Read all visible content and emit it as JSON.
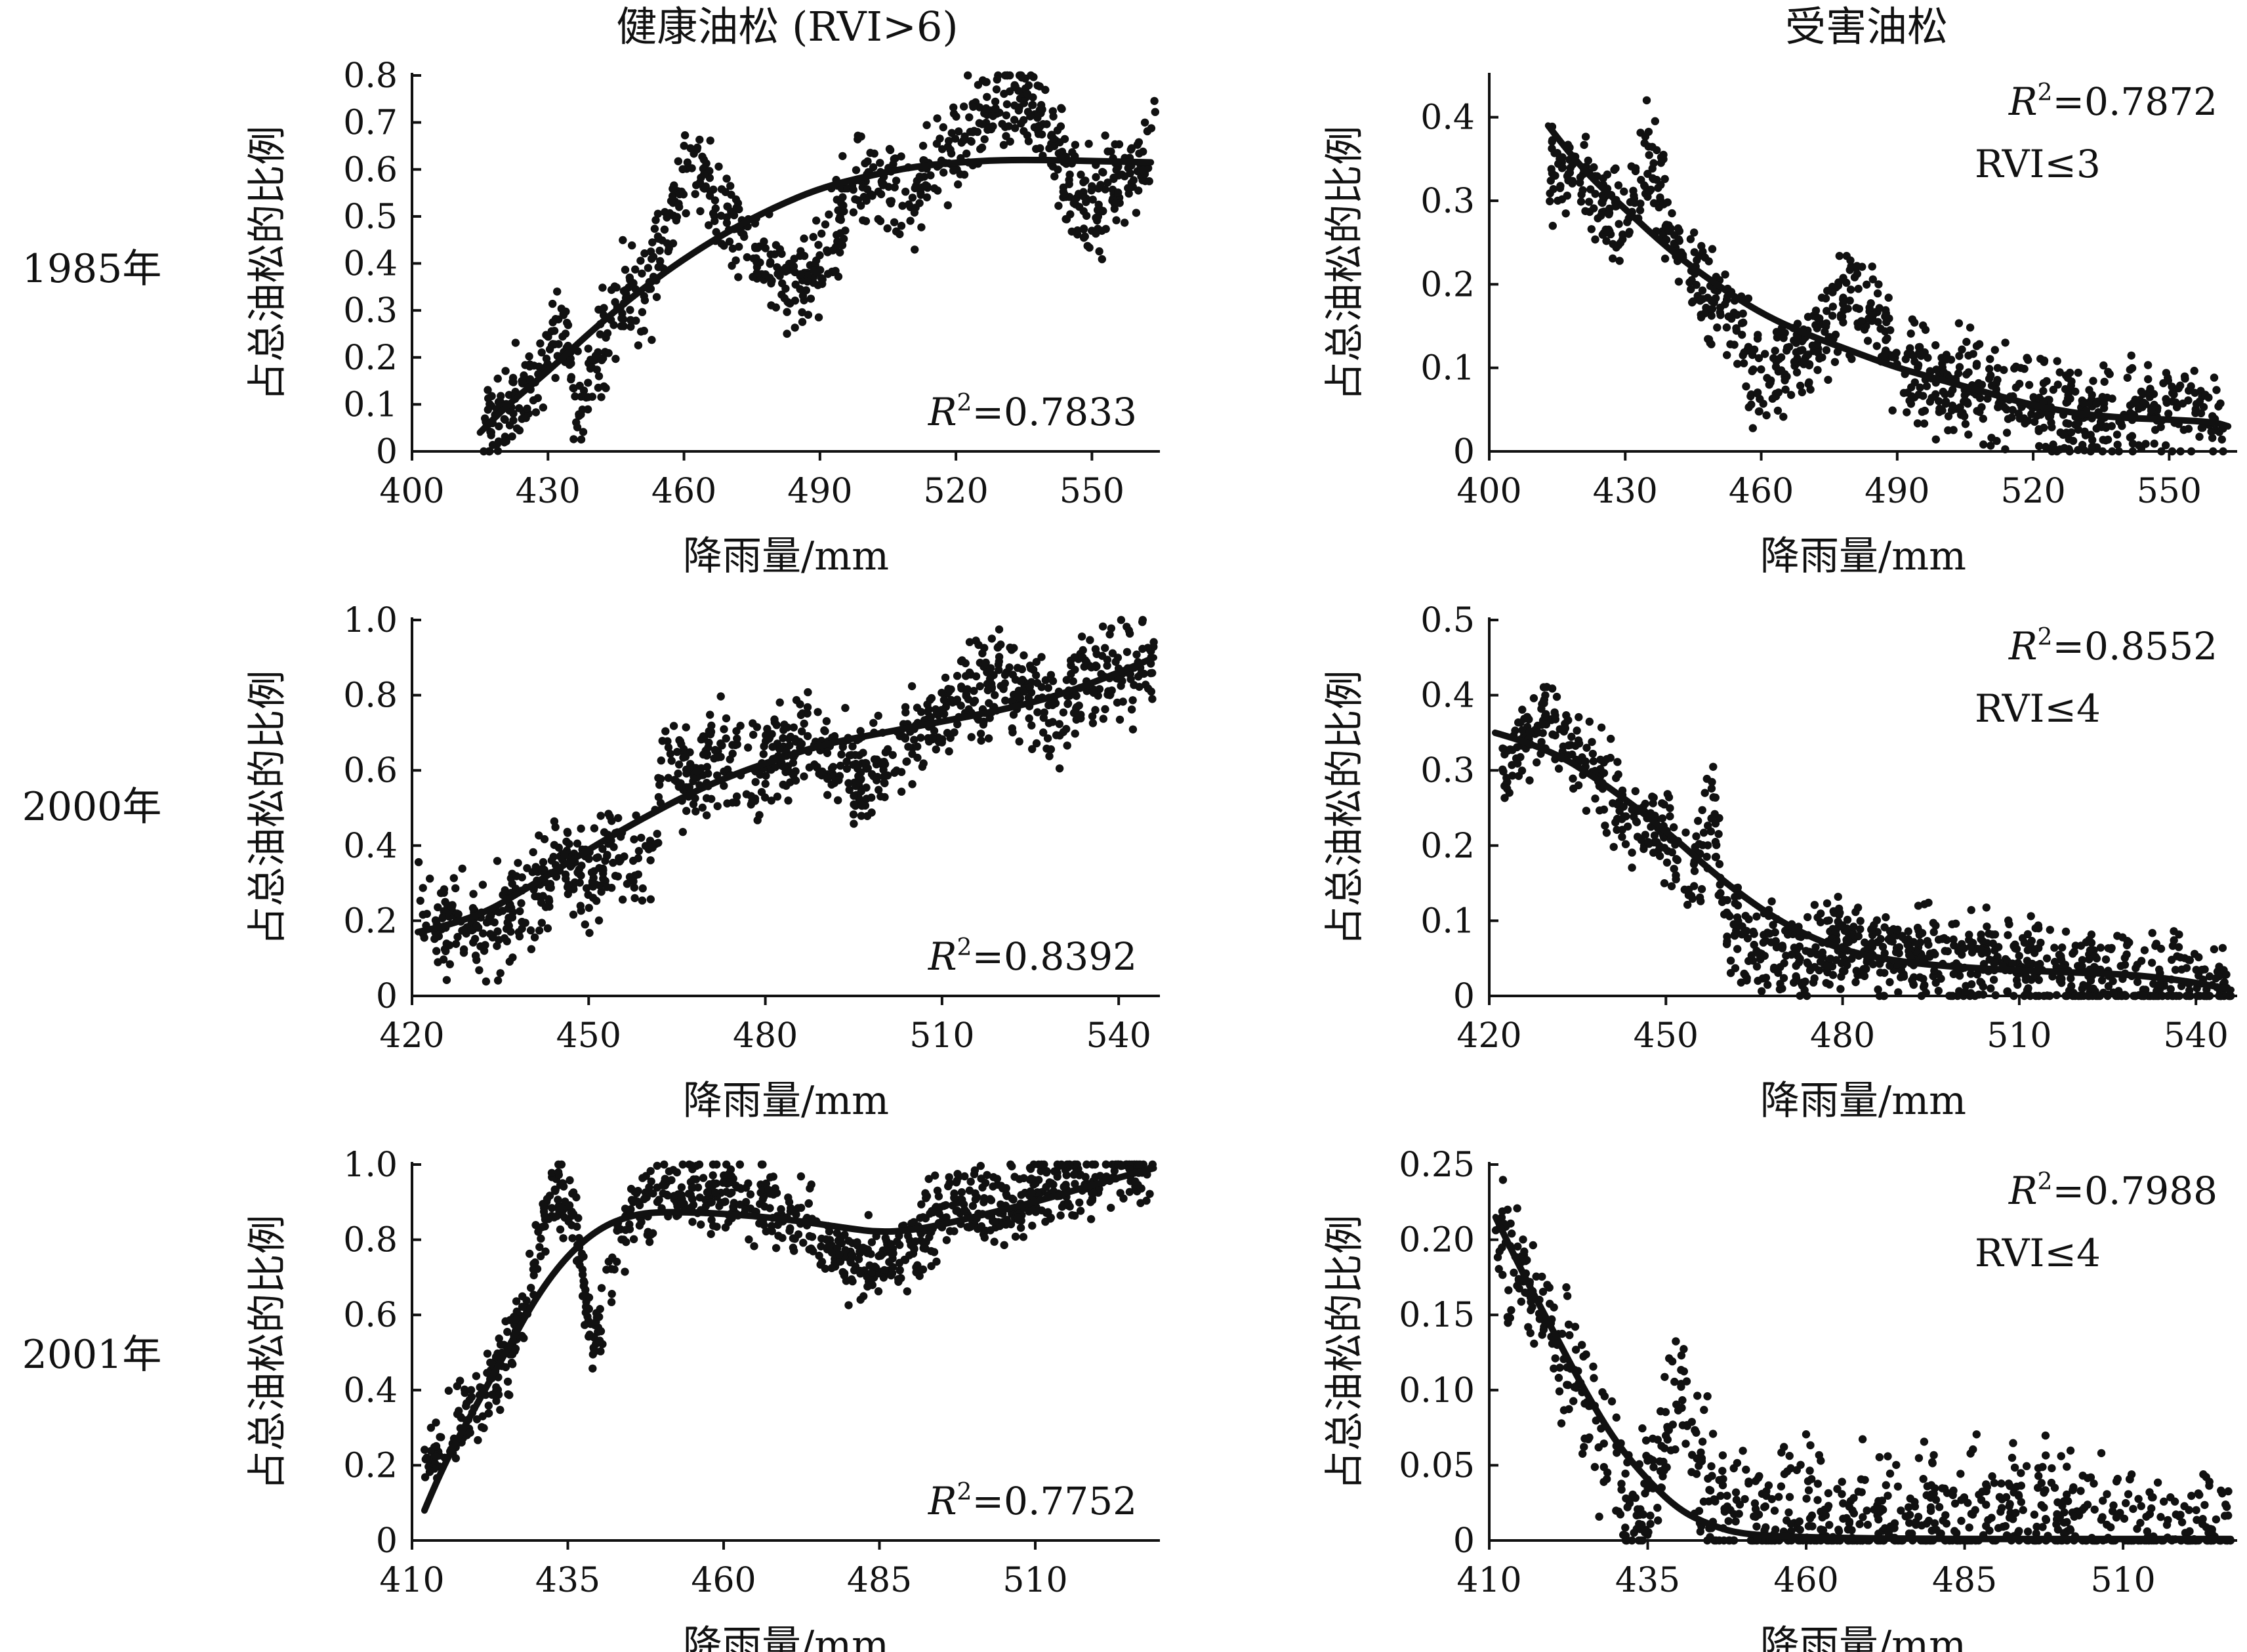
{
  "figure": {
    "column_titles": [
      "健康油松 (RVI>6)",
      "受害油松"
    ],
    "row_labels": [
      "1985年",
      "2000年",
      "2001年"
    ]
  },
  "chart_data": [
    {
      "id": "p1985h",
      "type": "scatter",
      "row": 0,
      "col": 0,
      "xlabel": "降雨量/mm",
      "ylabel": "占总油松的比例",
      "xlim": [
        400,
        565
      ],
      "ylim": [
        0,
        0.8
      ],
      "xticks": [
        400,
        430,
        460,
        490,
        520,
        550
      ],
      "xtick_labels": [
        "400",
        "430",
        "460",
        "490",
        "520",
        "550"
      ],
      "yticks": [
        0,
        0.1,
        0.2,
        0.3,
        0.4,
        0.5,
        0.6,
        0.7,
        0.8
      ],
      "ytick_labels": [
        "0",
        "0.1",
        "0.2",
        "0.3",
        "0.4",
        "0.5",
        "0.6",
        "0.7",
        "0.8"
      ],
      "r2_label": "R",
      "r2_value": "=0.7833",
      "rvi_label": "",
      "stat_position": "bottom-right",
      "scatter_trend": [
        [
          415,
          0.03
        ],
        [
          420,
          0.08
        ],
        [
          425,
          0.12
        ],
        [
          430,
          0.2
        ],
        [
          433,
          0.27
        ],
        [
          437,
          0.1
        ],
        [
          440,
          0.15
        ],
        [
          445,
          0.3
        ],
        [
          450,
          0.33
        ],
        [
          455,
          0.4
        ],
        [
          460,
          0.6
        ],
        [
          465,
          0.58
        ],
        [
          470,
          0.5
        ],
        [
          475,
          0.45
        ],
        [
          480,
          0.38
        ],
        [
          485,
          0.35
        ],
        [
          490,
          0.4
        ],
        [
          495,
          0.52
        ],
        [
          500,
          0.6
        ],
        [
          505,
          0.57
        ],
        [
          510,
          0.55
        ],
        [
          515,
          0.6
        ],
        [
          520,
          0.65
        ],
        [
          525,
          0.7
        ],
        [
          530,
          0.73
        ],
        [
          535,
          0.76
        ],
        [
          540,
          0.7
        ],
        [
          545,
          0.55
        ],
        [
          550,
          0.52
        ],
        [
          555,
          0.57
        ],
        [
          560,
          0.6
        ],
        [
          564,
          0.7
        ]
      ],
      "scatter_spread": 0.05,
      "n_points": 900,
      "fit_curve": [
        [
          415,
          0.04
        ],
        [
          420,
          0.09
        ],
        [
          430,
          0.17
        ],
        [
          440,
          0.26
        ],
        [
          450,
          0.34
        ],
        [
          460,
          0.41
        ],
        [
          470,
          0.47
        ],
        [
          480,
          0.52
        ],
        [
          490,
          0.56
        ],
        [
          500,
          0.585
        ],
        [
          510,
          0.605
        ],
        [
          520,
          0.615
        ],
        [
          530,
          0.62
        ],
        [
          540,
          0.62
        ],
        [
          550,
          0.618
        ],
        [
          563,
          0.615
        ]
      ]
    },
    {
      "id": "p1985d",
      "type": "scatter",
      "row": 0,
      "col": 1,
      "xlabel": "降雨量/mm",
      "ylabel": "占总油松的比例",
      "xlim": [
        400,
        565
      ],
      "ylim": [
        0,
        0.45
      ],
      "xticks": [
        400,
        430,
        460,
        490,
        520,
        550
      ],
      "xtick_labels": [
        "400",
        "430",
        "460",
        "490",
        "520",
        "550"
      ],
      "yticks": [
        0,
        0.1,
        0.2,
        0.3,
        0.4
      ],
      "ytick_labels": [
        "0",
        "0.1",
        "0.2",
        "0.3",
        "0.4"
      ],
      "r2_label": "R",
      "r2_value": "=0.7872",
      "rvi_label": "RVI≤3",
      "stat_position": "top-right",
      "scatter_trend": [
        [
          413,
          0.34
        ],
        [
          418,
          0.33
        ],
        [
          422,
          0.33
        ],
        [
          425,
          0.3
        ],
        [
          430,
          0.27
        ],
        [
          435,
          0.35
        ],
        [
          438,
          0.3
        ],
        [
          442,
          0.24
        ],
        [
          446,
          0.2
        ],
        [
          450,
          0.18
        ],
        [
          455,
          0.15
        ],
        [
          460,
          0.08
        ],
        [
          465,
          0.1
        ],
        [
          470,
          0.13
        ],
        [
          475,
          0.16
        ],
        [
          480,
          0.18
        ],
        [
          485,
          0.17
        ],
        [
          490,
          0.12
        ],
        [
          495,
          0.09
        ],
        [
          500,
          0.08
        ],
        [
          510,
          0.07
        ],
        [
          520,
          0.05
        ],
        [
          530,
          0.04
        ],
        [
          540,
          0.04
        ],
        [
          545,
          0.06
        ],
        [
          550,
          0.05
        ],
        [
          555,
          0.05
        ],
        [
          562,
          0.02
        ]
      ],
      "scatter_spread": 0.03,
      "n_points": 900,
      "fit_curve": [
        [
          413,
          0.39
        ],
        [
          420,
          0.34
        ],
        [
          430,
          0.29
        ],
        [
          440,
          0.24
        ],
        [
          450,
          0.2
        ],
        [
          460,
          0.165
        ],
        [
          470,
          0.14
        ],
        [
          480,
          0.12
        ],
        [
          490,
          0.1
        ],
        [
          500,
          0.085
        ],
        [
          510,
          0.07
        ],
        [
          520,
          0.055
        ],
        [
          530,
          0.045
        ],
        [
          540,
          0.04
        ],
        [
          550,
          0.038
        ],
        [
          560,
          0.035
        ],
        [
          563,
          0.03
        ]
      ]
    },
    {
      "id": "p2000h",
      "type": "scatter",
      "row": 1,
      "col": 0,
      "xlabel": "降雨量/mm",
      "ylabel": "占总油松的比例",
      "xlim": [
        420,
        547
      ],
      "ylim": [
        0,
        1.0
      ],
      "xticks": [
        420,
        450,
        480,
        510,
        540
      ],
      "xtick_labels": [
        "420",
        "450",
        "480",
        "510",
        "540"
      ],
      "yticks": [
        0,
        0.2,
        0.4,
        0.6,
        0.8,
        1.0
      ],
      "ytick_labels": [
        "0",
        "0.2",
        "0.4",
        "0.6",
        "0.8",
        "1.0"
      ],
      "r2_label": "R",
      "r2_value": "=0.8392",
      "rvi_label": "",
      "stat_position": "bottom-right",
      "scatter_trend": [
        [
          421,
          0.22
        ],
        [
          425,
          0.18
        ],
        [
          430,
          0.15
        ],
        [
          435,
          0.2
        ],
        [
          440,
          0.27
        ],
        [
          445,
          0.35
        ],
        [
          450,
          0.3
        ],
        [
          455,
          0.4
        ],
        [
          460,
          0.3
        ],
        [
          463,
          0.65
        ],
        [
          468,
          0.58
        ],
        [
          472,
          0.62
        ],
        [
          478,
          0.6
        ],
        [
          482,
          0.65
        ],
        [
          488,
          0.7
        ],
        [
          492,
          0.62
        ],
        [
          497,
          0.58
        ],
        [
          500,
          0.6
        ],
        [
          505,
          0.7
        ],
        [
          510,
          0.73
        ],
        [
          515,
          0.8
        ],
        [
          520,
          0.85
        ],
        [
          525,
          0.8
        ],
        [
          530,
          0.75
        ],
        [
          535,
          0.85
        ],
        [
          540,
          0.87
        ],
        [
          546,
          0.88
        ]
      ],
      "scatter_spread": 0.065,
      "n_points": 1000,
      "fit_curve": [
        [
          421,
          0.17
        ],
        [
          430,
          0.2
        ],
        [
          440,
          0.29
        ],
        [
          450,
          0.39
        ],
        [
          460,
          0.48
        ],
        [
          470,
          0.56
        ],
        [
          480,
          0.62
        ],
        [
          490,
          0.67
        ],
        [
          500,
          0.7
        ],
        [
          510,
          0.73
        ],
        [
          520,
          0.76
        ],
        [
          530,
          0.8
        ],
        [
          540,
          0.86
        ],
        [
          546,
          0.9
        ]
      ]
    },
    {
      "id": "p2000d",
      "type": "scatter",
      "row": 1,
      "col": 1,
      "xlabel": "降雨量/mm",
      "ylabel": "占总油松的比例",
      "xlim": [
        420,
        547
      ],
      "ylim": [
        0,
        0.5
      ],
      "xticks": [
        420,
        450,
        480,
        510,
        540
      ],
      "xtick_labels": [
        "420",
        "450",
        "480",
        "510",
        "540"
      ],
      "yticks": [
        0,
        0.1,
        0.2,
        0.3,
        0.4,
        0.5
      ],
      "ytick_labels": [
        "0",
        "0.1",
        "0.2",
        "0.3",
        "0.4",
        "0.5"
      ],
      "r2_label": "R",
      "r2_value": "=0.8552",
      "rvi_label": "RVI≤4",
      "stat_position": "top-right",
      "scatter_trend": [
        [
          422,
          0.28
        ],
        [
          426,
          0.35
        ],
        [
          430,
          0.37
        ],
        [
          434,
          0.33
        ],
        [
          438,
          0.3
        ],
        [
          442,
          0.25
        ],
        [
          446,
          0.22
        ],
        [
          450,
          0.22
        ],
        [
          454,
          0.15
        ],
        [
          458,
          0.25
        ],
        [
          460,
          0.1
        ],
        [
          464,
          0.07
        ],
        [
          470,
          0.06
        ],
        [
          476,
          0.06
        ],
        [
          480,
          0.07
        ],
        [
          486,
          0.05
        ],
        [
          490,
          0.05
        ],
        [
          495,
          0.06
        ],
        [
          500,
          0.04
        ],
        [
          505,
          0.04
        ],
        [
          510,
          0.03
        ],
        [
          515,
          0.03
        ],
        [
          520,
          0.02
        ],
        [
          525,
          0.02
        ],
        [
          530,
          0.02
        ],
        [
          535,
          0.015
        ],
        [
          540,
          0.01
        ],
        [
          546,
          0.005
        ]
      ],
      "scatter_spread": 0.03,
      "n_points": 1000,
      "fit_curve": [
        [
          421,
          0.35
        ],
        [
          430,
          0.33
        ],
        [
          440,
          0.28
        ],
        [
          450,
          0.22
        ],
        [
          460,
          0.15
        ],
        [
          470,
          0.095
        ],
        [
          480,
          0.06
        ],
        [
          490,
          0.045
        ],
        [
          500,
          0.038
        ],
        [
          510,
          0.034
        ],
        [
          520,
          0.031
        ],
        [
          530,
          0.028
        ],
        [
          540,
          0.018
        ],
        [
          546,
          0.008
        ]
      ]
    },
    {
      "id": "p2001h",
      "type": "scatter",
      "row": 2,
      "col": 0,
      "xlabel": "降雨量/mm",
      "ylabel": "占总油松的比例",
      "xlim": [
        410,
        530
      ],
      "ylim": [
        0,
        1.0
      ],
      "xticks": [
        410,
        435,
        460,
        485,
        510
      ],
      "xtick_labels": [
        "410",
        "435",
        "460",
        "485",
        "510"
      ],
      "yticks": [
        0,
        0.2,
        0.4,
        0.6,
        0.8,
        1.0
      ],
      "ytick_labels": [
        "0",
        "0.2",
        "0.4",
        "0.6",
        "0.8",
        "1.0"
      ],
      "r2_label": "R",
      "r2_value": "=0.7752",
      "rvi_label": "",
      "stat_position": "bottom-right",
      "scatter_trend": [
        [
          412,
          0.22
        ],
        [
          416,
          0.28
        ],
        [
          420,
          0.35
        ],
        [
          424,
          0.45
        ],
        [
          428,
          0.6
        ],
        [
          432,
          0.92
        ],
        [
          436,
          0.88
        ],
        [
          439,
          0.5
        ],
        [
          442,
          0.75
        ],
        [
          446,
          0.9
        ],
        [
          450,
          0.93
        ],
        [
          455,
          0.92
        ],
        [
          460,
          0.93
        ],
        [
          465,
          0.9
        ],
        [
          470,
          0.88
        ],
        [
          475,
          0.8
        ],
        [
          480,
          0.75
        ],
        [
          485,
          0.72
        ],
        [
          490,
          0.78
        ],
        [
          495,
          0.88
        ],
        [
          500,
          0.9
        ],
        [
          505,
          0.88
        ],
        [
          510,
          0.92
        ],
        [
          515,
          0.95
        ],
        [
          520,
          0.97
        ],
        [
          525,
          0.98
        ],
        [
          529,
          0.99
        ]
      ],
      "scatter_spread": 0.05,
      "n_points": 1000,
      "fit_curve": [
        [
          412,
          0.08
        ],
        [
          415,
          0.2
        ],
        [
          420,
          0.35
        ],
        [
          425,
          0.5
        ],
        [
          430,
          0.65
        ],
        [
          435,
          0.76
        ],
        [
          440,
          0.83
        ],
        [
          445,
          0.865
        ],
        [
          450,
          0.875
        ],
        [
          460,
          0.87
        ],
        [
          470,
          0.855
        ],
        [
          480,
          0.83
        ],
        [
          485,
          0.82
        ],
        [
          490,
          0.825
        ],
        [
          495,
          0.84
        ],
        [
          500,
          0.86
        ],
        [
          510,
          0.9
        ],
        [
          520,
          0.95
        ],
        [
          529,
          0.99
        ]
      ]
    },
    {
      "id": "p2001d",
      "type": "scatter",
      "row": 2,
      "col": 1,
      "xlabel": "降雨量/mm",
      "ylabel": "占总油松的比例",
      "xlim": [
        410,
        528
      ],
      "ylim": [
        0,
        0.25
      ],
      "xticks": [
        410,
        435,
        460,
        485,
        510
      ],
      "xtick_labels": [
        "410",
        "435",
        "460",
        "485",
        "510"
      ],
      "yticks": [
        0,
        0.05,
        0.1,
        0.15,
        0.2,
        0.25
      ],
      "ytick_labels": [
        "0",
        "0.05",
        "0.10",
        "0.15",
        "0.20",
        "0.25"
      ],
      "r2_label": "R",
      "r2_value": "=0.7988",
      "rvi_label": "RVI≤4",
      "stat_position": "top-right",
      "scatter_trend": [
        [
          411,
          0.2
        ],
        [
          414,
          0.18
        ],
        [
          418,
          0.16
        ],
        [
          422,
          0.12
        ],
        [
          426,
          0.08
        ],
        [
          430,
          0.04
        ],
        [
          433,
          0.01
        ],
        [
          437,
          0.05
        ],
        [
          440,
          0.1
        ],
        [
          443,
          0.05
        ],
        [
          446,
          0.02
        ],
        [
          450,
          0.01
        ],
        [
          460,
          0.01
        ],
        [
          470,
          0.01
        ],
        [
          480,
          0.015
        ],
        [
          490,
          0.015
        ],
        [
          500,
          0.015
        ],
        [
          510,
          0.01
        ],
        [
          520,
          0.005
        ],
        [
          527,
          0.003
        ]
      ],
      "scatter_spread": 0.022,
      "n_points": 900,
      "fit_curve": [
        [
          411,
          0.215
        ],
        [
          415,
          0.18
        ],
        [
          420,
          0.14
        ],
        [
          425,
          0.1
        ],
        [
          430,
          0.065
        ],
        [
          435,
          0.04
        ],
        [
          440,
          0.02
        ],
        [
          445,
          0.01
        ],
        [
          450,
          0.004
        ],
        [
          460,
          0.002
        ],
        [
          480,
          0.001
        ],
        [
          500,
          0.001
        ],
        [
          527,
          0.001
        ]
      ]
    }
  ]
}
